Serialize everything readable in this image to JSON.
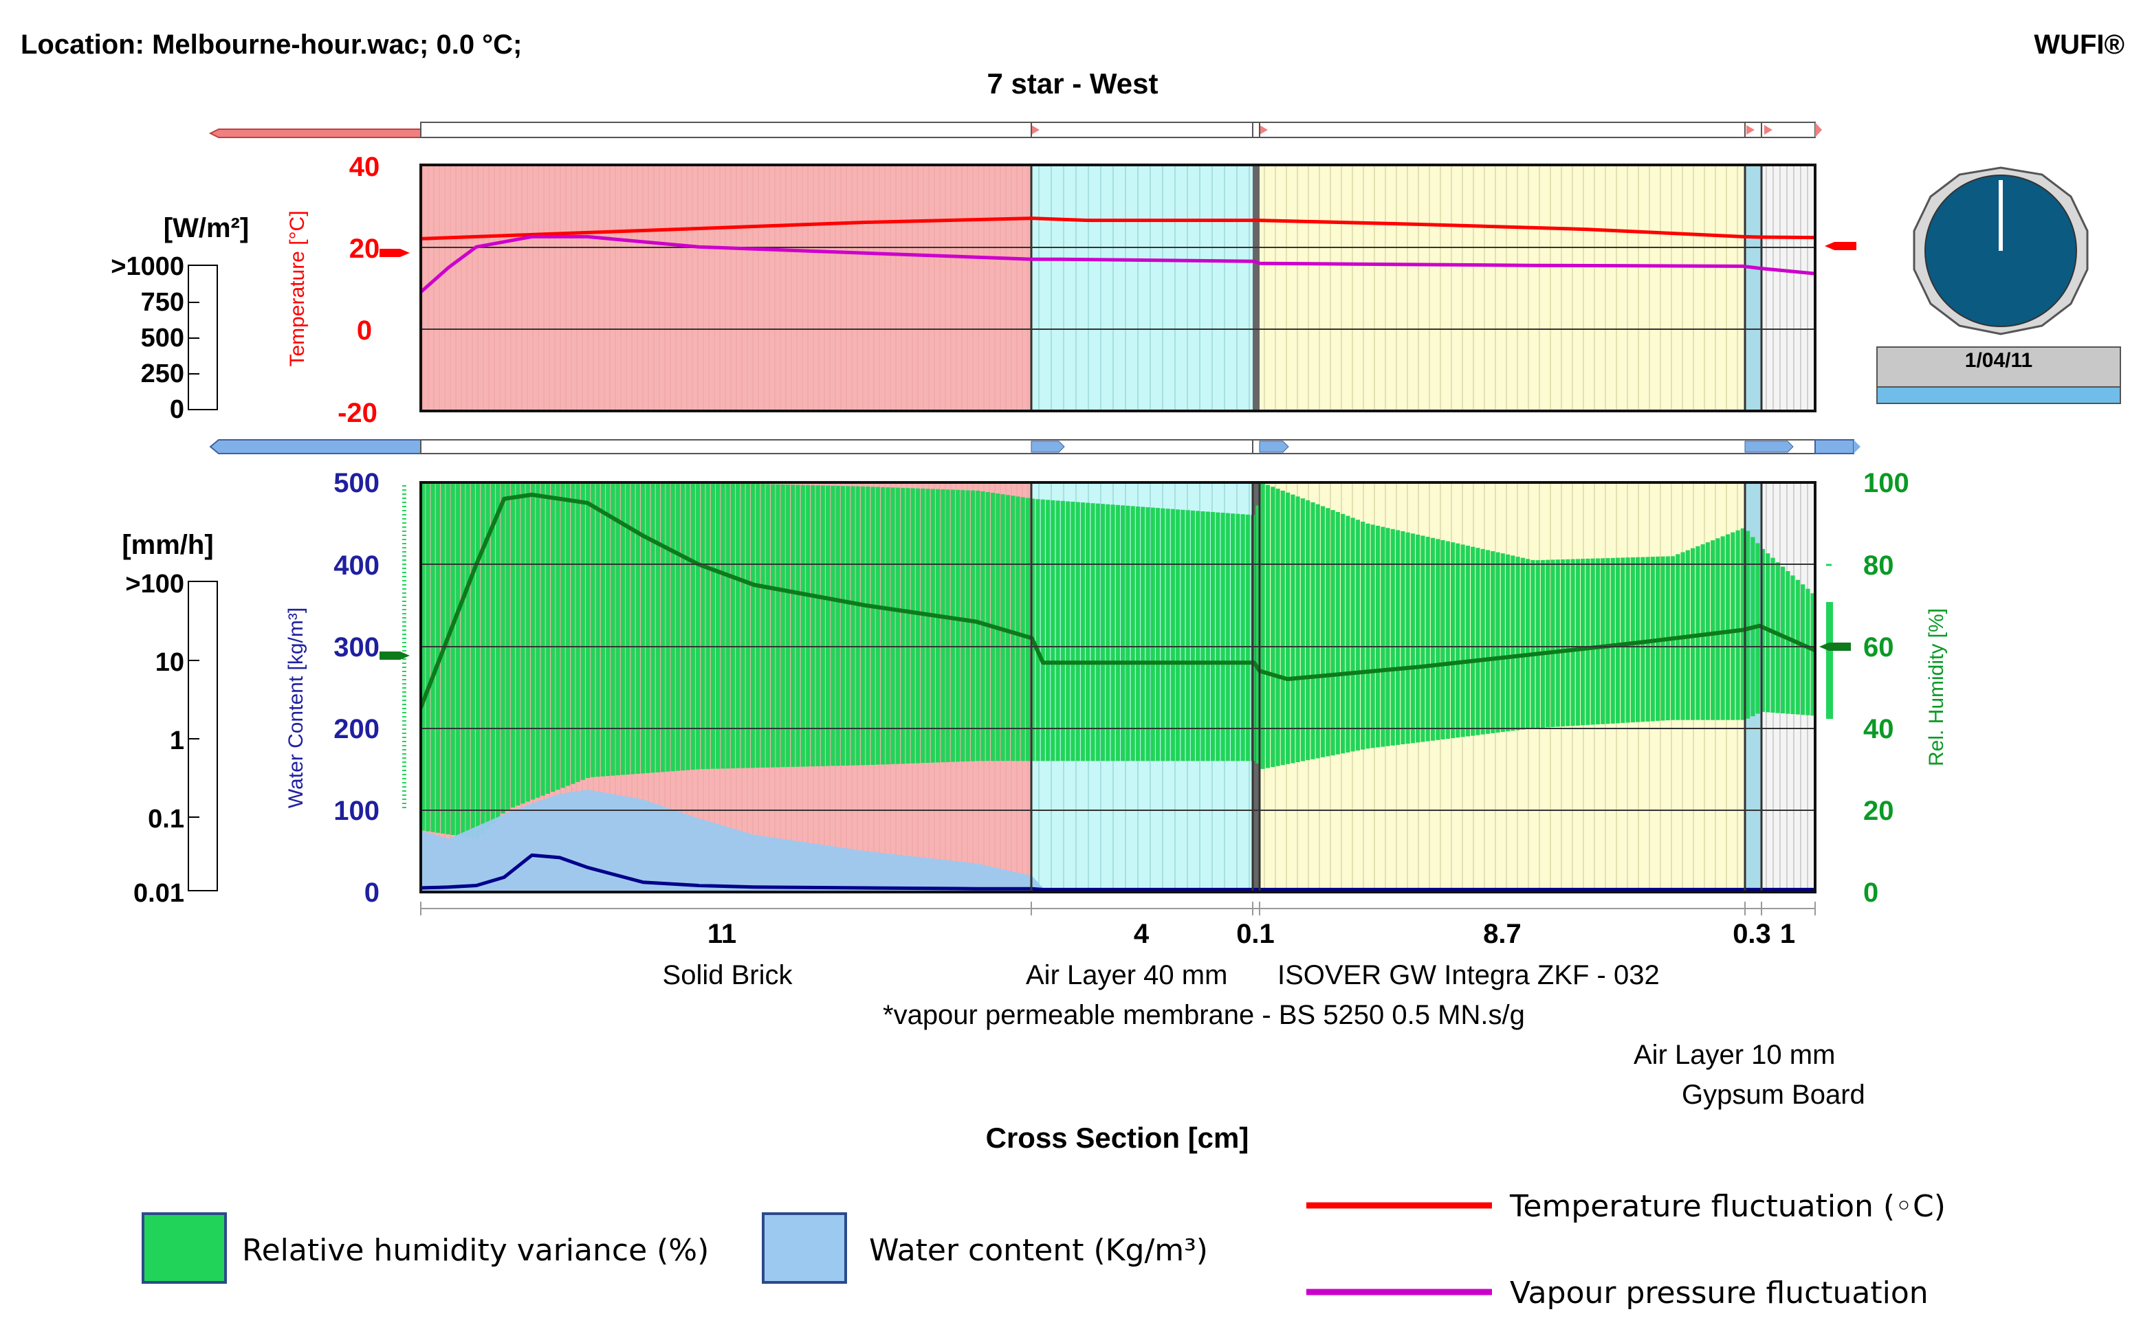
{
  "header": {
    "location": "Location: Melbourne-hour.wac; 0.0 °C;",
    "brand": "WUFI®",
    "title": "7 star - West"
  },
  "colors": {
    "brick_bg": "#f7b3b3",
    "air_bg": "#c8f7f7",
    "insulation_bg": "#fdfbd2",
    "board_bg": "#f1f1f1",
    "temperature": "#ff0000",
    "vapour": "#cc00cc",
    "rh_band": "#21d459",
    "rh_line": "#0d7a1c",
    "water_fill": "#9bc9f0",
    "water_line": "#00008b",
    "clock_face": "#0b5a82"
  },
  "top_panel": {
    "flux_unit": "[W/m²]",
    "flux_scale": [
      ">1000",
      "750",
      "500",
      "250",
      "0"
    ],
    "axis_label": "Temperature [°C]",
    "y_ticks": [
      "40",
      "20",
      "0",
      "-20"
    ]
  },
  "bottom_panel": {
    "rain_unit": "[mm/h]",
    "rain_scale": [
      ">100",
      "10",
      "1",
      "0.1",
      "0.01"
    ],
    "left_axis_label": "Water Content [kg/m³]",
    "left_ticks": [
      "500",
      "400",
      "300",
      "200",
      "100",
      "0"
    ],
    "right_axis_label": "Rel. Humidity [%]",
    "right_ticks": [
      "100",
      "80",
      "60",
      "40",
      "20",
      "0"
    ]
  },
  "clock": {
    "date": "1/04/11"
  },
  "layers": [
    {
      "thickness": "11",
      "name": "Solid Brick"
    },
    {
      "thickness": "4",
      "name": "Air Layer 40 mm"
    },
    {
      "thickness": "0.1",
      "name": "*vapour permeable membrane - BS 5250 0.5 MN.s/g"
    },
    {
      "thickness": "8.7",
      "name": "ISOVER GW Integra ZKF - 032"
    },
    {
      "thickness": "0.3",
      "name": "Air Layer 10 mm"
    },
    {
      "thickness": "1",
      "name": "Gypsum Board"
    }
  ],
  "x_axis_label": "Cross Section [cm]",
  "legend": {
    "rh_variance": "Relative humidity variance (%)",
    "water_content": "Water content (Kg/m³)",
    "temp_fluct": "Temperature fluctuation (◦C)",
    "vapour_fluct": "Vapour pressure fluctuation"
  },
  "chart_data": [
    {
      "type": "line",
      "panel": "temperature",
      "xlabel": "Cross Section [cm]",
      "ylabel": "Temperature [°C]",
      "ylim": [
        -20,
        40
      ],
      "xlim": [
        0,
        25.1
      ],
      "series": [
        {
          "x": [
            0,
            1,
            2,
            3,
            5,
            8,
            11,
            12,
            15,
            15.1,
            18,
            21,
            23.8,
            24.1,
            25.1
          ],
          "values": [
            22,
            22.5,
            23,
            23.5,
            24.5,
            26,
            27,
            26.5,
            26.5,
            26.5,
            25.5,
            24.3,
            22.5,
            22.4,
            22.3
          ]
        },
        {
          "x": [
            0,
            0.5,
            1,
            2,
            3,
            5,
            8,
            11,
            11.5,
            15,
            15.1,
            20,
            23.8,
            24.1,
            25.1
          ],
          "values": [
            9,
            15,
            20,
            22.5,
            22.5,
            20,
            18.5,
            17,
            17,
            16.5,
            16,
            15.5,
            15.3,
            14.8,
            13.5
          ]
        }
      ]
    },
    {
      "type": "area",
      "panel": "moisture",
      "xlabel": "Cross Section [cm]",
      "ylabel": "Water Content [kg/m³]",
      "ylim": [
        0,
        500
      ],
      "y2label": "Rel. Humidity [%]",
      "y2lim": [
        0,
        100
      ],
      "rh_band": {
        "x": [
          0,
          1,
          1.5,
          3,
          5,
          8,
          10,
          11,
          15,
          15.1,
          17,
          20,
          22.5,
          23.8,
          24.1,
          25.1
        ],
        "max": [
          100,
          100,
          100,
          100,
          100,
          99,
          98,
          96,
          92,
          100,
          90,
          81,
          82,
          89,
          84,
          72
        ],
        "min": [
          15,
          13,
          20,
          28,
          30,
          31,
          32,
          32,
          32,
          30,
          35,
          40,
          42,
          42,
          44,
          43
        ]
      },
      "rh_mean": {
        "x": [
          0,
          1,
          1.5,
          2,
          2.5,
          3,
          4,
          5,
          6,
          8,
          10,
          11,
          11.2,
          15,
          15.1,
          15.6,
          18,
          20,
          22,
          23.8,
          24.1,
          25.1
        ],
        "values": [
          45,
          80,
          96,
          97,
          96,
          95,
          87,
          80,
          75,
          70,
          66,
          62,
          56,
          56,
          54,
          52,
          55,
          58,
          61,
          64,
          65,
          59
        ]
      },
      "water_content": {
        "x": [
          0,
          0.5,
          1,
          1.5,
          2,
          2.5,
          3,
          4,
          5,
          6,
          8,
          10,
          11,
          11.2,
          25.1
        ],
        "max": [
          75,
          65,
          80,
          95,
          108,
          120,
          125,
          113,
          90,
          70,
          50,
          35,
          20,
          5,
          5
        ],
        "mean": [
          5,
          6,
          8,
          18,
          45,
          42,
          30,
          12,
          8,
          6,
          5,
          4,
          4,
          3,
          3
        ]
      }
    }
  ]
}
